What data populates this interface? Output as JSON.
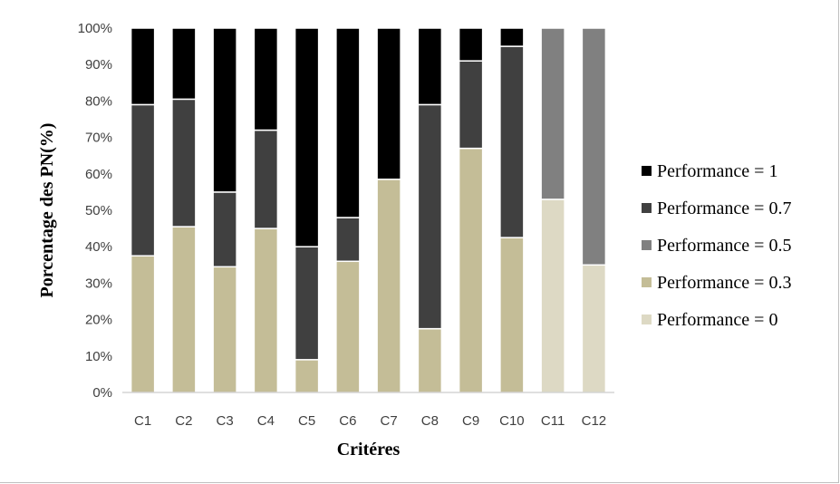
{
  "chart_data": {
    "type": "bar",
    "stacked": true,
    "percent_stacked": true,
    "xlabel": "Critéres",
    "ylabel": "Porcentage des PN(%)",
    "ylim": [
      0,
      100
    ],
    "y_ticks": [
      "0%",
      "10%",
      "20%",
      "30%",
      "40%",
      "50%",
      "60%",
      "70%",
      "80%",
      "90%",
      "100%"
    ],
    "grid": false,
    "legend_position": "right",
    "categories": [
      "C1",
      "C2",
      "C3",
      "C4",
      "C5",
      "C6",
      "C7",
      "C8",
      "C9",
      "C10",
      "C11",
      "C12"
    ],
    "series": [
      {
        "name": "Performance = 0",
        "color": "#ddd9c4",
        "values": [
          0,
          0,
          0,
          0,
          0,
          0,
          0,
          0,
          0,
          0,
          53,
          35
        ]
      },
      {
        "name": "Performance = 0.3",
        "color": "#c4bd97",
        "values": [
          37.5,
          45.5,
          34.5,
          45,
          9,
          36,
          58.5,
          17.5,
          67,
          42.5,
          0,
          0
        ]
      },
      {
        "name": "Performance = 0.5",
        "color": "#808080",
        "values": [
          0,
          0,
          0,
          0,
          0,
          0,
          0,
          0,
          0,
          0,
          47,
          65
        ]
      },
      {
        "name": "Performance = 0.7",
        "color": "#404040",
        "values": [
          41.5,
          35,
          20.5,
          27,
          31,
          12,
          0,
          61.5,
          24,
          52.5,
          0,
          0
        ]
      },
      {
        "name": "Performance = 1",
        "color": "#000000",
        "values": [
          21,
          19.5,
          45,
          28,
          60,
          52,
          41.5,
          21,
          9,
          5,
          0,
          0
        ]
      }
    ],
    "legend_order": [
      "Performance = 1",
      "Performance = 0.7",
      "Performance = 0.5",
      "Performance = 0.3",
      "Performance = 0"
    ]
  }
}
